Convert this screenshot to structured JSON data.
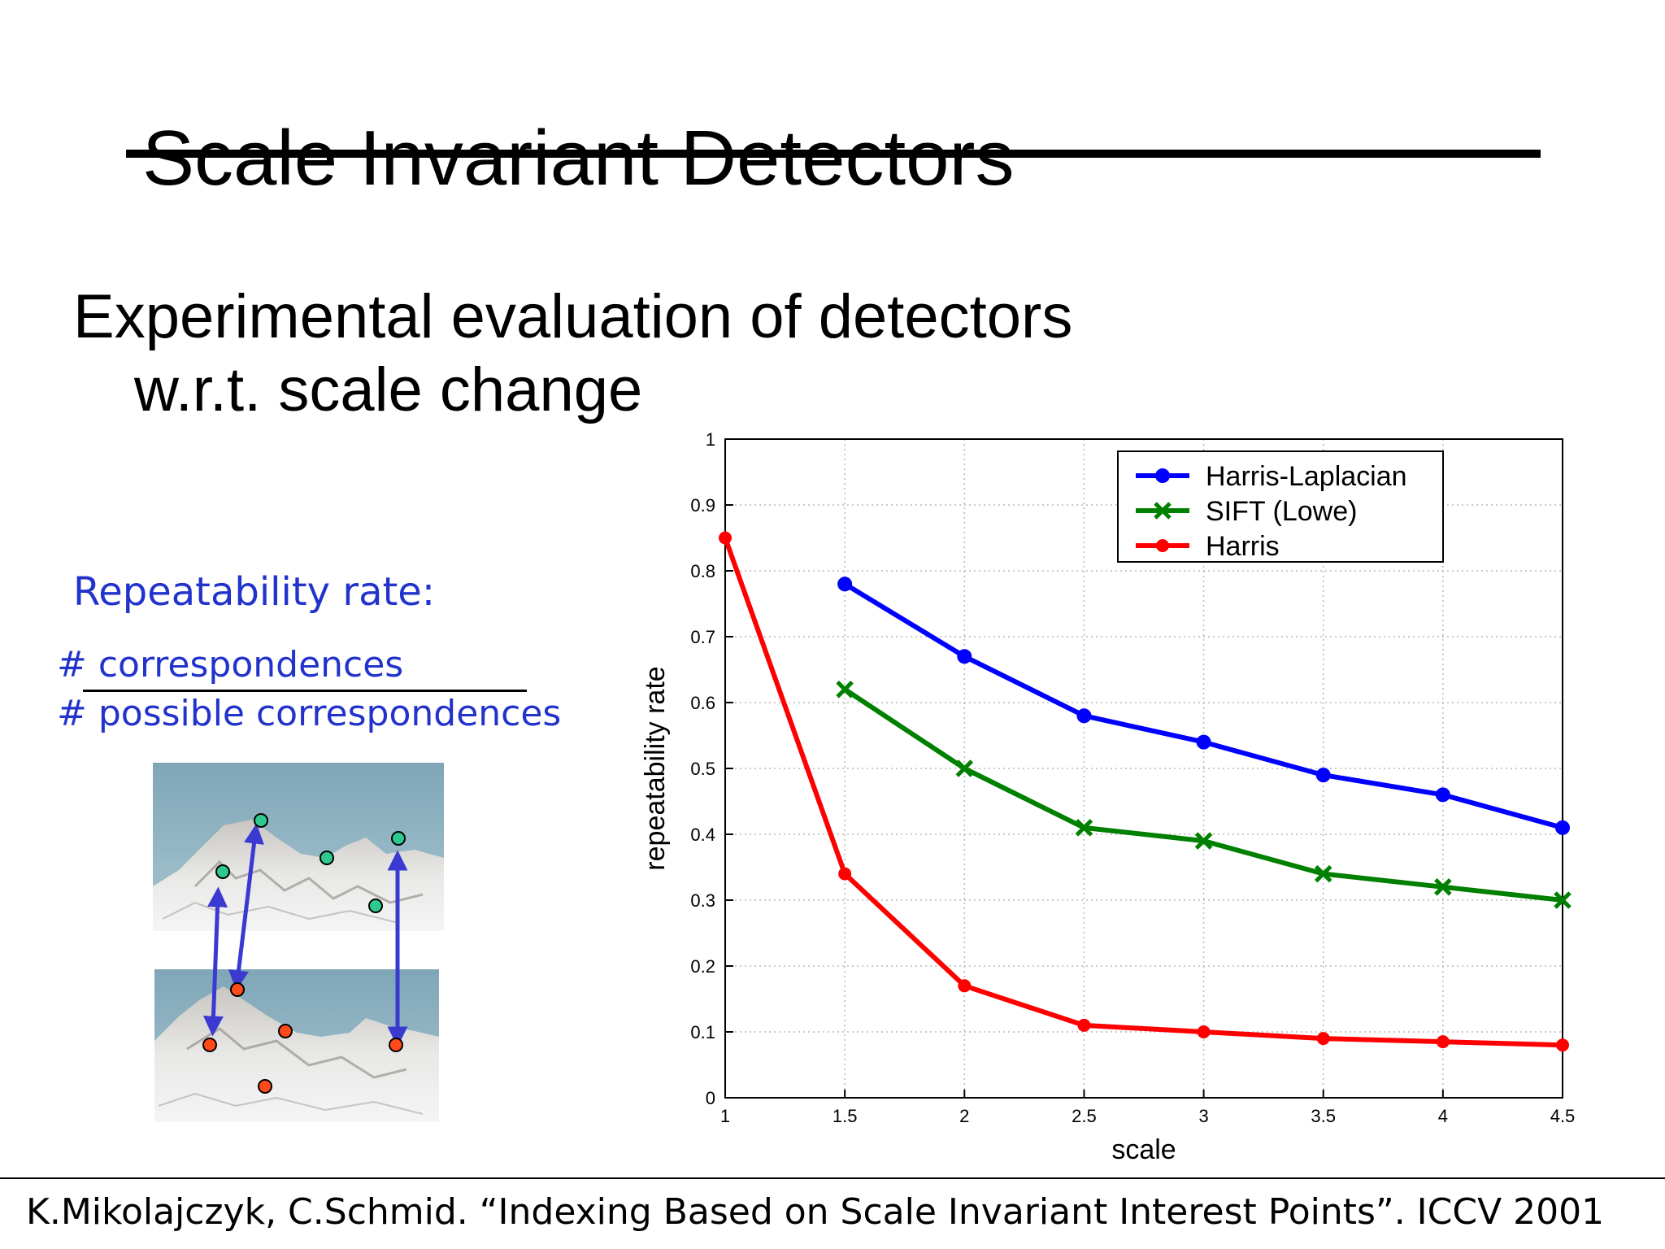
{
  "slide": {
    "title": "Scale Invariant Detectors",
    "subtitle_line1": "Experimental evaluation of detectors",
    "subtitle_line2": "w.r.t. scale change",
    "repeatability_label": "Repeatability rate:",
    "fraction_numerator": "# correspondences",
    "fraction_denominator": "# possible correspondences",
    "citation": "K.Mikolajczyk, C.Schmid. “Indexing Based on Scale Invariant Interest Points”. ICCV 2001"
  },
  "colors": {
    "text_blue": "#2233cc",
    "arrow": "#3a3ad0",
    "point_top": "#2ec98f",
    "point_bottom": "#ff4a1a"
  },
  "illustration": {
    "top_image": "mountain-photo-icon",
    "bottom_image": "mountain-photo-icon"
  },
  "chart_data": {
    "type": "line",
    "title": "",
    "xlabel": "scale",
    "ylabel": "repeatability rate",
    "xlim": [
      1,
      4.5
    ],
    "ylim": [
      0,
      1
    ],
    "xticks": [
      "1",
      "1.5",
      "2",
      "2.5",
      "3",
      "3.5",
      "4",
      "4.5"
    ],
    "yticks": [
      "0",
      "0.1",
      "0.2",
      "0.3",
      "0.4",
      "0.5",
      "0.6",
      "0.7",
      "0.8",
      "0.9",
      "1"
    ],
    "grid": true,
    "legend_position": "top-right",
    "series": [
      {
        "name": "Harris-Laplacian",
        "color": "#0000ff",
        "marker": "circle",
        "x": [
          1.5,
          2,
          2.5,
          3,
          3.5,
          4,
          4.5
        ],
        "y": [
          0.78,
          0.67,
          0.58,
          0.54,
          0.49,
          0.46,
          0.41
        ]
      },
      {
        "name": "SIFT (Lowe)",
        "color": "#008000",
        "marker": "x",
        "x": [
          1.5,
          2,
          2.5,
          3,
          3.5,
          4,
          4.5
        ],
        "y": [
          0.62,
          0.5,
          0.41,
          0.39,
          0.34,
          0.32,
          0.3
        ]
      },
      {
        "name": "Harris",
        "color": "#ff0000",
        "marker": "dot",
        "x": [
          1,
          1.5,
          2,
          2.5,
          3,
          3.5,
          4,
          4.5
        ],
        "y": [
          0.85,
          0.34,
          0.17,
          0.11,
          0.1,
          0.09,
          0.085,
          0.08
        ]
      }
    ]
  }
}
